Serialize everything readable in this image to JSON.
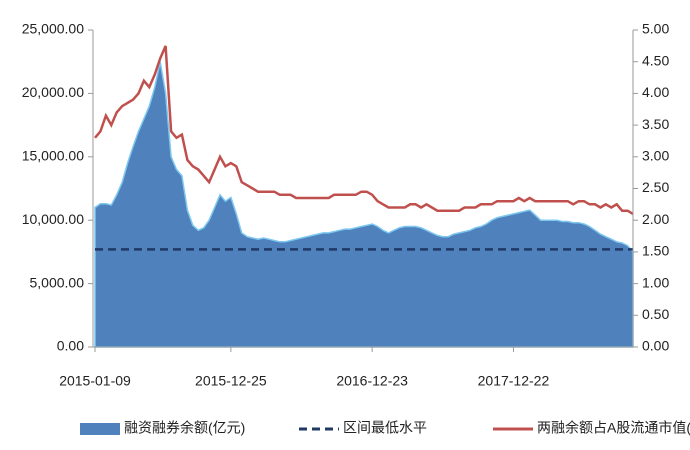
{
  "chart_data": {
    "type": "area",
    "categories": [
      "2015-01-09",
      null,
      null,
      null,
      null,
      null,
      null,
      null,
      null,
      null,
      null,
      null,
      null,
      null,
      null,
      null,
      null,
      null,
      null,
      null,
      null,
      null,
      null,
      null,
      null,
      "2015-12-25",
      null,
      null,
      null,
      null,
      null,
      null,
      null,
      null,
      null,
      null,
      null,
      null,
      null,
      null,
      null,
      null,
      null,
      null,
      null,
      null,
      null,
      null,
      null,
      null,
      null,
      "2016-12-23",
      null,
      null,
      null,
      null,
      null,
      null,
      null,
      null,
      null,
      null,
      null,
      null,
      null,
      null,
      null,
      null,
      null,
      null,
      null,
      null,
      null,
      null,
      null,
      null,
      null,
      "2017-12-22",
      null,
      null,
      null,
      null,
      null,
      null,
      null,
      null,
      null,
      null,
      null,
      null,
      null,
      null,
      null,
      null,
      null,
      null,
      null,
      null,
      null,
      null
    ],
    "series": [
      {
        "name": "融资融券余额(亿元)",
        "type": "area",
        "color": "#4f81bd",
        "values": [
          11000,
          11300,
          11300,
          11200,
          12000,
          13000,
          14500,
          15800,
          17000,
          18000,
          19000,
          20500,
          22500,
          20000,
          15000,
          14000,
          13500,
          10800,
          9600,
          9200,
          9400,
          10000,
          11000,
          12000,
          11500,
          11800,
          10500,
          9000,
          8700,
          8600,
          8500,
          8600,
          8500,
          8400,
          8300,
          8300,
          8400,
          8500,
          8600,
          8700,
          8800,
          8900,
          9000,
          9000,
          9100,
          9200,
          9300,
          9300,
          9400,
          9500,
          9600,
          9700,
          9500,
          9200,
          9000,
          9200,
          9400,
          9500,
          9500,
          9500,
          9400,
          9200,
          9000,
          8800,
          8700,
          8700,
          8900,
          9000,
          9100,
          9200,
          9400,
          9500,
          9700,
          10000,
          10200,
          10300,
          10400,
          10500,
          10600,
          10700,
          10800,
          10400,
          10000,
          10000,
          10000,
          10000,
          9900,
          9900,
          9800,
          9800,
          9700,
          9500,
          9200,
          8900,
          8700,
          8500,
          8300,
          8200,
          8000,
          7500
        ]
      },
      {
        "name": "两融余额占A股流通市值(%)",
        "type": "line",
        "axis": "y2",
        "color": "#c0504d",
        "values": [
          3.3,
          3.4,
          3.65,
          3.5,
          3.7,
          3.8,
          3.85,
          3.9,
          4.0,
          4.2,
          4.1,
          4.3,
          4.55,
          4.75,
          3.4,
          3.3,
          3.35,
          2.95,
          2.85,
          2.8,
          2.7,
          2.6,
          2.8,
          3.0,
          2.85,
          2.9,
          2.85,
          2.6,
          2.55,
          2.5,
          2.45,
          2.45,
          2.45,
          2.45,
          2.4,
          2.4,
          2.4,
          2.35,
          2.35,
          2.35,
          2.35,
          2.35,
          2.35,
          2.35,
          2.4,
          2.4,
          2.4,
          2.4,
          2.4,
          2.45,
          2.45,
          2.4,
          2.3,
          2.25,
          2.2,
          2.2,
          2.2,
          2.2,
          2.25,
          2.25,
          2.2,
          2.25,
          2.2,
          2.15,
          2.15,
          2.15,
          2.15,
          2.15,
          2.2,
          2.2,
          2.2,
          2.25,
          2.25,
          2.25,
          2.3,
          2.3,
          2.3,
          2.3,
          2.35,
          2.3,
          2.35,
          2.3,
          2.3,
          2.3,
          2.3,
          2.3,
          2.3,
          2.3,
          2.25,
          2.3,
          2.3,
          2.25,
          2.25,
          2.2,
          2.25,
          2.2,
          2.25,
          2.15,
          2.15,
          2.1
        ]
      }
    ],
    "reference_line": {
      "name": "区间最低水平",
      "color": "#1f3864",
      "value": 7700
    },
    "ylim": [
      0,
      25000
    ],
    "yticks": [
      {
        "value": 0,
        "label": "0.00"
      },
      {
        "value": 5000,
        "label": "5,000.00"
      },
      {
        "value": 10000,
        "label": "10,000.00"
      },
      {
        "value": 15000,
        "label": "15,000.00"
      },
      {
        "value": 20000,
        "label": "20,000.00"
      },
      {
        "value": 25000,
        "label": "25,000.00"
      }
    ],
    "y2lim": [
      0,
      5
    ],
    "y2ticks": [
      {
        "value": 0,
        "label": "0.00"
      },
      {
        "value": 0.5,
        "label": "0.50"
      },
      {
        "value": 1,
        "label": "1.00"
      },
      {
        "value": 1.5,
        "label": "1.50"
      },
      {
        "value": 2,
        "label": "2.00"
      },
      {
        "value": 2.5,
        "label": "2.50"
      },
      {
        "value": 3,
        "label": "3.00"
      },
      {
        "value": 3.5,
        "label": "3.50"
      },
      {
        "value": 4,
        "label": "4.00"
      },
      {
        "value": 4.5,
        "label": "4.50"
      },
      {
        "value": 5,
        "label": "5.00"
      }
    ],
    "grid": false,
    "legend": "bottom"
  }
}
